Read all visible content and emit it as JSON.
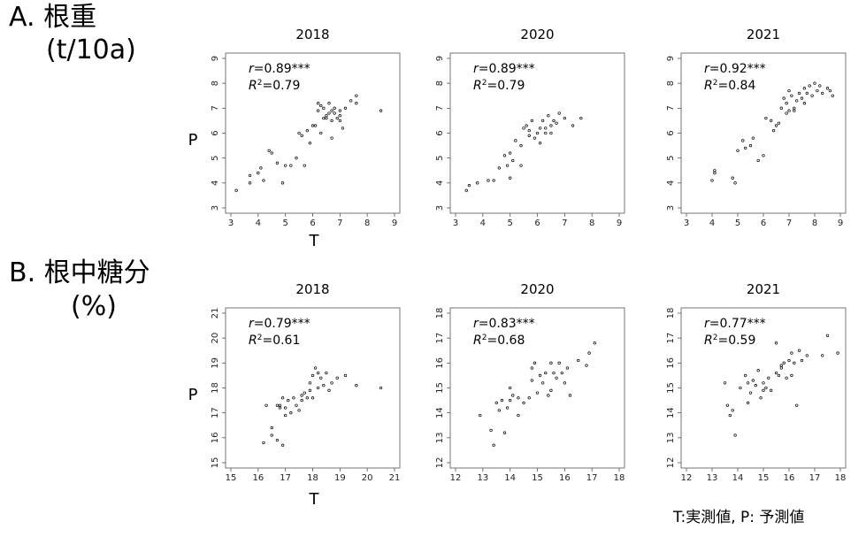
{
  "sections": [
    {
      "id": "A",
      "title_line1": "A. 根重",
      "title_line2": "(t/10a)",
      "y_axis_label": "P",
      "x_axis_label": "T"
    },
    {
      "id": "B",
      "title_line1": "B. 根中糖分",
      "title_line2": "(%)",
      "y_axis_label": "P",
      "x_axis_label": "T"
    }
  ],
  "footnote": "T:実測値, P: 予測値",
  "chart_data": [
    {
      "type": "scatter",
      "section": "A",
      "title": "2018",
      "r": "r=0.89***",
      "r2": "R2=0.79",
      "xlim": [
        3,
        9
      ],
      "ylim": [
        3,
        9
      ],
      "xticks": [
        3,
        4,
        5,
        6,
        7,
        8,
        9
      ],
      "yticks": [
        3,
        4,
        5,
        6,
        7,
        8,
        9
      ],
      "points": [
        [
          3.2,
          3.7
        ],
        [
          3.7,
          4.0
        ],
        [
          3.7,
          4.3
        ],
        [
          4.0,
          4.4
        ],
        [
          4.1,
          4.6
        ],
        [
          4.2,
          4.1
        ],
        [
          4.4,
          5.3
        ],
        [
          4.5,
          5.2
        ],
        [
          4.7,
          4.8
        ],
        [
          4.9,
          4.0
        ],
        [
          5.0,
          4.7
        ],
        [
          5.2,
          4.7
        ],
        [
          5.4,
          5.0
        ],
        [
          5.5,
          6.0
        ],
        [
          5.6,
          5.9
        ],
        [
          5.7,
          4.7
        ],
        [
          5.8,
          6.1
        ],
        [
          5.9,
          5.6
        ],
        [
          6.0,
          6.3
        ],
        [
          6.2,
          6.9
        ],
        [
          6.2,
          7.2
        ],
        [
          6.3,
          7.1
        ],
        [
          6.4,
          6.6
        ],
        [
          6.4,
          7.0
        ],
        [
          6.5,
          6.6
        ],
        [
          6.5,
          6.7
        ],
        [
          6.6,
          6.8
        ],
        [
          6.6,
          7.2
        ],
        [
          6.7,
          6.5
        ],
        [
          6.7,
          6.9
        ],
        [
          6.8,
          6.8
        ],
        [
          6.8,
          7.0
        ],
        [
          6.9,
          6.6
        ],
        [
          7.0,
          6.9
        ],
        [
          7.0,
          6.7
        ],
        [
          7.1,
          6.2
        ],
        [
          7.2,
          7.0
        ],
        [
          7.4,
          7.3
        ],
        [
          7.6,
          7.2
        ],
        [
          7.6,
          7.5
        ],
        [
          8.5,
          6.9
        ],
        [
          6.3,
          6.0
        ],
        [
          6.1,
          6.3
        ],
        [
          6.7,
          5.8
        ],
        [
          7.0,
          6.5
        ]
      ]
    },
    {
      "type": "scatter",
      "section": "A",
      "title": "2020",
      "r": "r=0.89***",
      "r2": "R2=0.79",
      "xlim": [
        3,
        9
      ],
      "ylim": [
        3,
        9
      ],
      "xticks": [
        3,
        4,
        5,
        6,
        7,
        8,
        9
      ],
      "yticks": [
        3,
        4,
        5,
        6,
        7,
        8,
        9
      ],
      "points": [
        [
          3.4,
          3.7
        ],
        [
          3.5,
          3.9
        ],
        [
          3.8,
          4.0
        ],
        [
          4.2,
          4.1
        ],
        [
          4.4,
          4.1
        ],
        [
          4.6,
          4.6
        ],
        [
          4.8,
          5.1
        ],
        [
          4.9,
          4.7
        ],
        [
          5.0,
          5.2
        ],
        [
          5.1,
          4.9
        ],
        [
          5.0,
          4.2
        ],
        [
          5.2,
          5.7
        ],
        [
          5.4,
          5.5
        ],
        [
          5.5,
          6.2
        ],
        [
          5.6,
          6.3
        ],
        [
          5.7,
          5.9
        ],
        [
          5.8,
          6.5
        ],
        [
          5.9,
          5.8
        ],
        [
          6.0,
          6.0
        ],
        [
          6.1,
          5.6
        ],
        [
          6.2,
          6.5
        ],
        [
          6.3,
          6.2
        ],
        [
          6.4,
          6.7
        ],
        [
          6.5,
          6.3
        ],
        [
          6.6,
          6.5
        ],
        [
          6.7,
          6.4
        ],
        [
          6.8,
          6.8
        ],
        [
          7.0,
          6.6
        ],
        [
          7.3,
          6.3
        ],
        [
          7.6,
          6.6
        ],
        [
          5.4,
          4.7
        ],
        [
          5.7,
          6.1
        ],
        [
          6.3,
          6.0
        ],
        [
          6.1,
          6.2
        ],
        [
          6.5,
          6.0
        ]
      ]
    },
    {
      "type": "scatter",
      "section": "A",
      "title": "2021",
      "r": "r=0.92***",
      "r2": "R2=0.84",
      "xlim": [
        3,
        9
      ],
      "ylim": [
        3,
        9
      ],
      "xticks": [
        3,
        4,
        5,
        6,
        7,
        8,
        9
      ],
      "yticks": [
        3,
        4,
        5,
        6,
        7,
        8,
        9
      ],
      "points": [
        [
          4.0,
          4.1
        ],
        [
          4.1,
          4.4
        ],
        [
          4.1,
          4.5
        ],
        [
          4.8,
          4.2
        ],
        [
          4.9,
          4.0
        ],
        [
          5.0,
          5.3
        ],
        [
          5.2,
          5.7
        ],
        [
          5.3,
          5.4
        ],
        [
          5.5,
          5.5
        ],
        [
          5.6,
          5.8
        ],
        [
          5.8,
          4.9
        ],
        [
          6.0,
          5.1
        ],
        [
          6.1,
          6.6
        ],
        [
          6.3,
          6.5
        ],
        [
          6.4,
          6.1
        ],
        [
          6.5,
          6.3
        ],
        [
          6.7,
          7.0
        ],
        [
          6.8,
          7.4
        ],
        [
          6.9,
          7.2
        ],
        [
          7.0,
          6.9
        ],
        [
          7.1,
          7.5
        ],
        [
          7.2,
          6.9
        ],
        [
          7.3,
          7.3
        ],
        [
          7.4,
          7.6
        ],
        [
          7.5,
          7.4
        ],
        [
          7.6,
          7.8
        ],
        [
          7.7,
          7.6
        ],
        [
          7.8,
          7.9
        ],
        [
          7.9,
          7.5
        ],
        [
          8.0,
          8.0
        ],
        [
          8.1,
          7.7
        ],
        [
          8.2,
          7.9
        ],
        [
          8.3,
          7.6
        ],
        [
          8.5,
          7.8
        ],
        [
          8.6,
          7.7
        ],
        [
          8.7,
          7.5
        ],
        [
          6.6,
          6.4
        ],
        [
          6.9,
          6.8
        ],
        [
          7.2,
          7.0
        ],
        [
          7.0,
          7.7
        ],
        [
          7.6,
          7.2
        ]
      ]
    },
    {
      "type": "scatter",
      "section": "B",
      "title": "2018",
      "r": "r=0.79***",
      "r2": "R2=0.61",
      "xlim": [
        15,
        21
      ],
      "ylim": [
        15,
        21
      ],
      "xticks": [
        15,
        16,
        17,
        18,
        19,
        20,
        21
      ],
      "yticks": [
        15,
        16,
        17,
        18,
        19,
        20,
        21
      ],
      "points": [
        [
          16.2,
          15.8
        ],
        [
          16.3,
          17.3
        ],
        [
          16.5,
          16.4
        ],
        [
          16.5,
          16.1
        ],
        [
          16.7,
          17.3
        ],
        [
          16.7,
          15.9
        ],
        [
          16.9,
          15.7
        ],
        [
          16.9,
          17.6
        ],
        [
          17.0,
          17.2
        ],
        [
          17.0,
          16.9
        ],
        [
          17.1,
          17.5
        ],
        [
          17.2,
          17.0
        ],
        [
          17.4,
          17.3
        ],
        [
          17.5,
          17.1
        ],
        [
          17.6,
          17.5
        ],
        [
          17.7,
          17.8
        ],
        [
          17.8,
          17.6
        ],
        [
          17.9,
          18.2
        ],
        [
          18.0,
          18.5
        ],
        [
          18.0,
          17.6
        ],
        [
          18.1,
          18.8
        ],
        [
          18.2,
          18.0
        ],
        [
          18.3,
          18.4
        ],
        [
          18.4,
          18.1
        ],
        [
          18.5,
          18.6
        ],
        [
          18.6,
          17.9
        ],
        [
          18.7,
          18.2
        ],
        [
          18.9,
          18.4
        ],
        [
          19.2,
          18.5
        ],
        [
          19.6,
          18.1
        ],
        [
          20.5,
          18.0
        ],
        [
          16.8,
          17.2
        ],
        [
          17.3,
          17.6
        ],
        [
          17.9,
          17.9
        ],
        [
          18.2,
          18.6
        ],
        [
          17.6,
          17.7
        ],
        [
          16.8,
          17.3
        ]
      ]
    },
    {
      "type": "scatter",
      "section": "B",
      "title": "2020",
      "r": "r=0.83***",
      "r2": "R2=0.68",
      "xlim": [
        12,
        18
      ],
      "ylim": [
        12,
        18
      ],
      "xticks": [
        12,
        13,
        14,
        15,
        16,
        17,
        18
      ],
      "yticks": [
        12,
        13,
        14,
        15,
        16,
        17,
        18
      ],
      "points": [
        [
          12.9,
          13.9
        ],
        [
          13.3,
          13.3
        ],
        [
          13.4,
          12.7
        ],
        [
          13.5,
          14.4
        ],
        [
          13.6,
          14.1
        ],
        [
          13.7,
          14.5
        ],
        [
          13.8,
          13.2
        ],
        [
          13.9,
          14.2
        ],
        [
          14.0,
          14.5
        ],
        [
          14.0,
          15.0
        ],
        [
          14.1,
          14.7
        ],
        [
          14.3,
          13.9
        ],
        [
          14.5,
          14.4
        ],
        [
          14.7,
          14.6
        ],
        [
          14.8,
          15.3
        ],
        [
          14.8,
          15.8
        ],
        [
          14.9,
          16.0
        ],
        [
          15.0,
          14.8
        ],
        [
          15.1,
          15.5
        ],
        [
          15.2,
          15.2
        ],
        [
          15.3,
          15.6
        ],
        [
          15.4,
          14.7
        ],
        [
          15.5,
          16.0
        ],
        [
          15.6,
          15.6
        ],
        [
          15.7,
          15.4
        ],
        [
          15.8,
          16.0
        ],
        [
          15.9,
          15.6
        ],
        [
          16.0,
          15.2
        ],
        [
          16.2,
          14.7
        ],
        [
          16.5,
          16.1
        ],
        [
          16.8,
          15.9
        ],
        [
          16.9,
          16.4
        ],
        [
          17.1,
          16.8
        ],
        [
          14.3,
          14.6
        ],
        [
          15.5,
          14.9
        ],
        [
          16.1,
          15.8
        ]
      ]
    },
    {
      "type": "scatter",
      "section": "B",
      "title": "2021",
      "r": "r=0.77***",
      "r2": "R2=0.59",
      "xlim": [
        12,
        18
      ],
      "ylim": [
        12,
        18
      ],
      "xticks": [
        12,
        13,
        14,
        15,
        16,
        17,
        18
      ],
      "yticks": [
        12,
        13,
        14,
        15,
        16,
        17,
        18
      ],
      "points": [
        [
          13.5,
          15.2
        ],
        [
          13.6,
          14.3
        ],
        [
          13.7,
          13.9
        ],
        [
          13.8,
          14.1
        ],
        [
          13.9,
          13.1
        ],
        [
          14.1,
          15.0
        ],
        [
          14.3,
          15.5
        ],
        [
          14.4,
          15.2
        ],
        [
          14.5,
          14.8
        ],
        [
          14.6,
          15.3
        ],
        [
          14.7,
          15.1
        ],
        [
          14.8,
          15.7
        ],
        [
          14.9,
          14.6
        ],
        [
          15.0,
          15.2
        ],
        [
          15.1,
          15.0
        ],
        [
          15.2,
          15.4
        ],
        [
          15.3,
          14.9
        ],
        [
          15.5,
          15.6
        ],
        [
          15.6,
          15.5
        ],
        [
          15.7,
          15.8
        ],
        [
          15.8,
          16.0
        ],
        [
          15.9,
          15.4
        ],
        [
          16.0,
          16.1
        ],
        [
          16.1,
          16.4
        ],
        [
          16.2,
          16.0
        ],
        [
          16.3,
          14.3
        ],
        [
          16.4,
          16.5
        ],
        [
          16.5,
          16.1
        ],
        [
          16.7,
          16.3
        ],
        [
          17.3,
          16.3
        ],
        [
          17.5,
          17.1
        ],
        [
          17.9,
          16.4
        ],
        [
          15.5,
          16.8
        ],
        [
          14.4,
          14.4
        ],
        [
          15.0,
          14.9
        ],
        [
          16.1,
          15.5
        ],
        [
          15.7,
          15.9
        ]
      ]
    }
  ]
}
